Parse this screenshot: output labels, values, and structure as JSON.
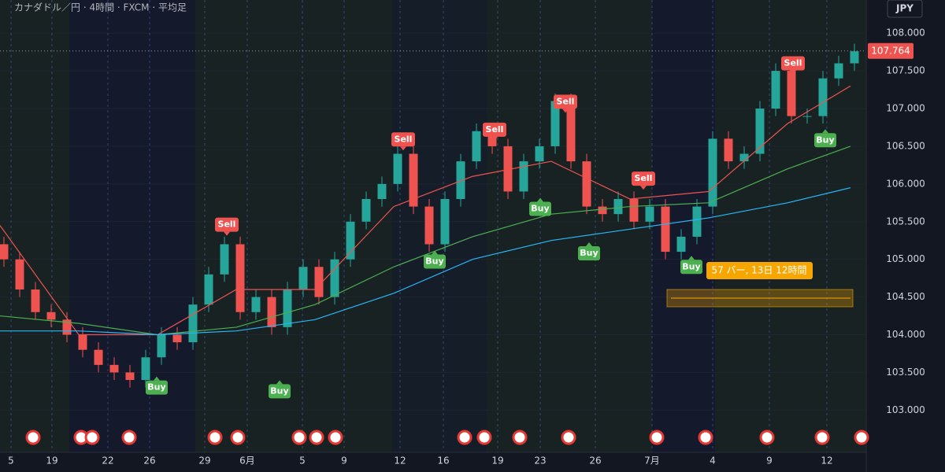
{
  "chart_data": {
    "type": "candlestick",
    "title": "カナダドル／円 · 4時間 · FXCM · 平均足",
    "currency": "JPY",
    "xlim": [
      0,
      110
    ],
    "ylim": [
      102.44,
      108.44
    ],
    "yticks": [
      {
        "value": 103,
        "label": "103.000"
      },
      {
        "value": 103.5,
        "label": "103.500"
      },
      {
        "value": 104,
        "label": "104.000"
      },
      {
        "value": 104.5,
        "label": "104.500"
      },
      {
        "value": 105,
        "label": "105.000"
      },
      {
        "value": 105.5,
        "label": "105.500"
      },
      {
        "value": 106,
        "label": "106.000"
      },
      {
        "value": 106.5,
        "label": "106.500"
      },
      {
        "value": 107,
        "label": "107.000"
      },
      {
        "value": 107.5,
        "label": "107.500"
      },
      {
        "value": 108,
        "label": "108.000"
      }
    ],
    "xticks": [
      {
        "value": 1.4,
        "label": "5"
      },
      {
        "value": 6.6,
        "label": "19"
      },
      {
        "value": 13.7,
        "label": "22"
      },
      {
        "value": 19,
        "label": "26"
      },
      {
        "value": 26,
        "label": "29"
      },
      {
        "value": 31.4,
        "label": "6月"
      },
      {
        "value": 38.4,
        "label": "5"
      },
      {
        "value": 43.7,
        "label": "9"
      },
      {
        "value": 50.8,
        "label": "12"
      },
      {
        "value": 56.3,
        "label": "16"
      },
      {
        "value": 63.2,
        "label": "19"
      },
      {
        "value": 68.6,
        "label": "23"
      },
      {
        "value": 75.6,
        "label": "26"
      },
      {
        "value": 82.8,
        "label": "7月"
      },
      {
        "value": 90.5,
        "label": "4"
      },
      {
        "value": 97.7,
        "label": "9"
      },
      {
        "value": 105,
        "label": "12"
      }
    ],
    "up_color": "#26a69a",
    "down_color": "#ef5350",
    "x": [
      0.5,
      2.5,
      4.5,
      6.5,
      8.5,
      10.5,
      12.5,
      14.5,
      16.5,
      18.5,
      20.5,
      22.5,
      24.5,
      26.5,
      28.5,
      30.5,
      32.5,
      34.5,
      36.5,
      38.5,
      40.5,
      42.5,
      44.5,
      46.5,
      48.5,
      50.5,
      52.5,
      54.5,
      56.5,
      58.5,
      60.5,
      62.5,
      64.5,
      66.5,
      68.5,
      70.5,
      72.5,
      74.5,
      76.5,
      78.5,
      80.5,
      82.5,
      84.5,
      86.5,
      88.5,
      90.5,
      92.5,
      94.5,
      96.5,
      98.5,
      100.5,
      102.5,
      104.5,
      106.5,
      108.5
    ],
    "open": [
      105.2,
      105.0,
      104.6,
      104.3,
      104.2,
      104.0,
      103.8,
      103.6,
      103.5,
      103.4,
      103.7,
      104.0,
      103.9,
      104.4,
      104.8,
      105.2,
      104.3,
      104.5,
      104.1,
      104.6,
      104.9,
      104.5,
      105.0,
      105.5,
      105.8,
      106.0,
      106.4,
      105.7,
      105.2,
      105.8,
      106.3,
      106.7,
      106.5,
      105.9,
      106.3,
      106.5,
      107.1,
      106.3,
      105.7,
      105.6,
      105.8,
      105.5,
      105.7,
      105.1,
      105.3,
      105.7,
      106.6,
      106.3,
      106.4,
      107.0,
      107.5,
      106.9,
      106.9,
      107.4,
      107.6
    ],
    "high": [
      105.3,
      105.1,
      104.7,
      104.4,
      104.3,
      104.1,
      103.9,
      103.7,
      103.6,
      103.8,
      104.1,
      104.1,
      104.5,
      104.9,
      105.3,
      105.3,
      104.6,
      104.6,
      104.7,
      105.0,
      105.0,
      105.1,
      105.6,
      105.9,
      106.1,
      106.5,
      106.5,
      105.8,
      105.9,
      106.4,
      106.8,
      106.8,
      106.6,
      106.4,
      106.6,
      107.2,
      107.2,
      106.4,
      105.8,
      105.9,
      105.9,
      105.8,
      105.8,
      105.4,
      105.8,
      106.7,
      106.7,
      106.5,
      107.1,
      107.6,
      107.6,
      107.0,
      107.5,
      107.7,
      107.86
    ],
    "low": [
      104.9,
      104.5,
      104.2,
      104.1,
      103.9,
      103.7,
      103.5,
      103.4,
      103.3,
      103.3,
      103.6,
      103.8,
      103.8,
      104.3,
      104.7,
      104.2,
      104.2,
      104.0,
      104.0,
      104.5,
      104.4,
      104.4,
      104.9,
      105.4,
      105.7,
      105.9,
      105.6,
      105.1,
      105.1,
      105.7,
      106.2,
      106.4,
      105.8,
      105.8,
      106.2,
      106.4,
      106.2,
      105.6,
      105.5,
      105.5,
      105.4,
      105.4,
      105.0,
      105.0,
      105.2,
      105.6,
      106.2,
      106.2,
      106.3,
      106.9,
      106.8,
      106.8,
      106.8,
      107.3,
      107.5
    ],
    "close": [
      105.0,
      104.6,
      104.3,
      104.2,
      104.0,
      103.8,
      103.6,
      103.5,
      103.4,
      103.7,
      104.0,
      103.9,
      104.4,
      104.8,
      105.2,
      104.3,
      104.5,
      104.1,
      104.6,
      104.9,
      104.5,
      105.0,
      105.5,
      105.8,
      106.0,
      106.4,
      105.7,
      105.2,
      105.8,
      106.3,
      106.7,
      106.5,
      105.9,
      106.3,
      106.5,
      107.1,
      106.3,
      105.7,
      105.6,
      105.8,
      105.5,
      105.7,
      105.1,
      105.3,
      105.7,
      106.6,
      106.3,
      106.4,
      107.0,
      107.5,
      106.9,
      106.9,
      107.4,
      107.6,
      107.76
    ],
    "lines": [
      {
        "color": "#ef5350",
        "x": [
          0,
          10,
          20,
          30,
          40,
          50,
          60,
          70,
          80,
          90,
          100,
          108
        ],
        "values": [
          105.45,
          104.0,
          104.0,
          104.6,
          104.6,
          105.7,
          106.1,
          106.3,
          105.8,
          105.9,
          106.8,
          107.3
        ]
      },
      {
        "color": "#4caf50",
        "x": [
          0,
          10,
          20,
          30,
          40,
          50,
          60,
          70,
          80,
          90,
          100,
          108
        ],
        "values": [
          104.25,
          104.15,
          104.0,
          104.1,
          104.4,
          104.9,
          105.3,
          105.6,
          105.7,
          105.75,
          106.2,
          106.5
        ]
      },
      {
        "color": "#29b6f6",
        "x": [
          0,
          10,
          20,
          30,
          40,
          50,
          60,
          70,
          80,
          90,
          100,
          108
        ],
        "values": [
          104.05,
          104.05,
          104.0,
          104.05,
          104.2,
          104.55,
          105.0,
          105.25,
          105.4,
          105.55,
          105.75,
          105.95
        ]
      }
    ],
    "signals": [
      {
        "label": "Sell",
        "x": 28.8,
        "y": 105.46
      },
      {
        "label": "Sell",
        "x": 51.2,
        "y": 106.59
      },
      {
        "label": "Sell",
        "x": 62.8,
        "y": 106.72
      },
      {
        "label": "Sell",
        "x": 71.8,
        "y": 107.09
      },
      {
        "label": "Sell",
        "x": 81.7,
        "y": 106.07
      },
      {
        "label": "Sell",
        "x": 100.7,
        "y": 107.6
      },
      {
        "label": "Buy",
        "x": 19.9,
        "y": 103.3
      },
      {
        "label": "Buy",
        "x": 35.5,
        "y": 103.25
      },
      {
        "label": "Buy",
        "x": 55.2,
        "y": 104.97
      },
      {
        "label": "Buy",
        "x": 68.6,
        "y": 105.67
      },
      {
        "label": "Buy",
        "x": 74.8,
        "y": 105.08
      },
      {
        "label": "Buy",
        "x": 87.8,
        "y": 104.9
      },
      {
        "label": "Buy",
        "x": 104.8,
        "y": 106.58
      }
    ],
    "last_price": 107.764,
    "measure_label": "57 バー, 13日 12時間"
  }
}
